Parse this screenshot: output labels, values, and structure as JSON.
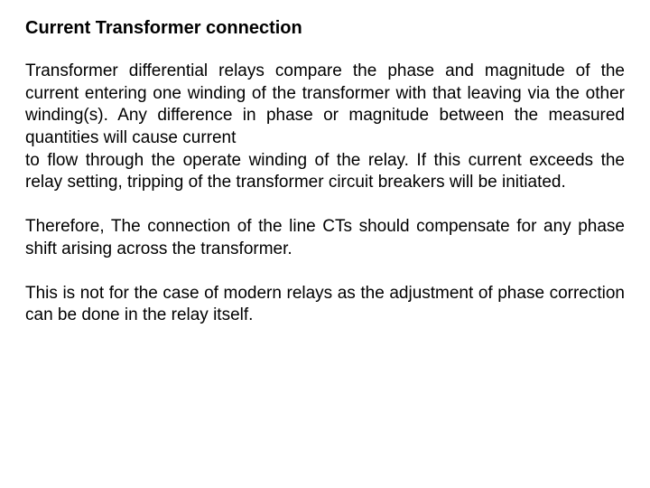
{
  "heading": "Current Transformer connection",
  "paragraphs": {
    "p1": "Transformer differential relays compare the phase and magnitude of the current entering one winding of the transformer with that leaving via the other winding(s). Any difference in phase or magnitude between the measured quantities will cause current\nto flow through the operate winding of the relay. If this current exceeds the relay setting, tripping of the transformer circuit breakers will be initiated.",
    "p2": "Therefore, The connection of the line CTs should compensate for any phase shift arising across the transformer.",
    "p3": "This is not for the case of modern relays as the adjustment of phase correction can be done in the relay itself."
  },
  "typography": {
    "heading_fontsize": 20,
    "heading_weight": "bold",
    "body_fontsize": 19,
    "line_height": 1.3,
    "text_align": "justify",
    "font_family": "Arial"
  },
  "colors": {
    "background": "#ffffff",
    "text": "#000000"
  }
}
